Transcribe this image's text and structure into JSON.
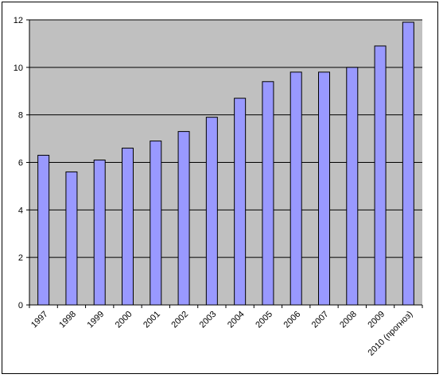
{
  "chart_data": {
    "type": "bar",
    "title": "",
    "xlabel": "",
    "ylabel": "",
    "categories": [
      "1997",
      "1998",
      "1999",
      "2000",
      "2001",
      "2002",
      "2003",
      "2004",
      "2005",
      "2006",
      "2007",
      "2008",
      "2009",
      "2010 (прогноз)"
    ],
    "values": [
      6.3,
      5.6,
      6.1,
      6.6,
      6.9,
      7.3,
      7.9,
      8.7,
      9.4,
      9.8,
      9.8,
      10.0,
      10.9,
      11.9
    ],
    "ylim": [
      0,
      12
    ],
    "yticks": [
      "0",
      "2",
      "4",
      "6",
      "8",
      "10",
      "12"
    ],
    "grid": true,
    "legend": "none",
    "colors": {
      "bar_fill": "#9999FF",
      "bar_stroke": "#000000",
      "plot_background": "#C0C0C0",
      "gridline": "#000000"
    }
  }
}
